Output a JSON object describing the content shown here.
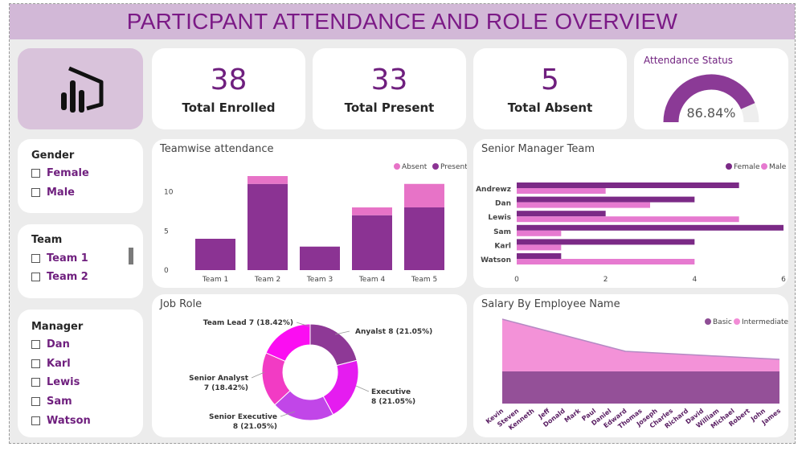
{
  "title": "PARTICPANT ATTENDANCE AND ROLE OVERVIEW",
  "logo": {
    "icon": "power-bi-logo-icon"
  },
  "kpis": [
    {
      "value": "38",
      "label": "Total Enrolled"
    },
    {
      "value": "33",
      "label": "Total Present"
    },
    {
      "value": "5",
      "label": "Total Absent"
    }
  ],
  "gauge": {
    "title": "Attendance Status",
    "value_label": "86.84%",
    "fraction": 0.8684,
    "fill_color": "#8b3a96",
    "track_color": "#eeeeee"
  },
  "slicers": {
    "gender": {
      "title": "Gender",
      "items": [
        "Female",
        "Male"
      ]
    },
    "team": {
      "title": "Team",
      "items": [
        "Team 1",
        "Team 2"
      ]
    },
    "manager": {
      "title": "Manager",
      "items": [
        "Dan",
        "Karl",
        "Lewis",
        "Sam",
        "Watson"
      ]
    }
  },
  "colors": {
    "present": "#8b3393",
    "absent": "#e773c7",
    "female": "#7b2a86",
    "male": "#e67ad0",
    "title": "#7b1a86"
  },
  "chart_data": [
    {
      "type": "bar",
      "title": "Teamwise attendance",
      "categories": [
        "Team 1",
        "Team 2",
        "Team 3",
        "Team 4",
        "Team 5"
      ],
      "series": [
        {
          "name": "Present",
          "values": [
            4,
            11,
            3,
            7,
            8
          ]
        },
        {
          "name": "Absent",
          "values": [
            0,
            1,
            0,
            1,
            3
          ]
        }
      ],
      "stacked": true,
      "legend": [
        "Absent",
        "Present"
      ],
      "yticks": [
        0,
        5,
        10
      ],
      "ylim": [
        0,
        12
      ]
    },
    {
      "type": "bar",
      "orientation": "horizontal",
      "title": "Senior Manager Team",
      "categories": [
        "Andrewz",
        "Dan",
        "Lewis",
        "Sam",
        "Karl",
        "Watson"
      ],
      "series": [
        {
          "name": "Female",
          "values": [
            5,
            4,
            2,
            6,
            4,
            1
          ]
        },
        {
          "name": "Male",
          "values": [
            2,
            3,
            5,
            1,
            1,
            4
          ]
        }
      ],
      "xticks": [
        0,
        2,
        4,
        6
      ],
      "xlim": [
        0,
        6
      ]
    },
    {
      "type": "pie",
      "donut": true,
      "title": "Job Role",
      "slices": [
        {
          "label": "Anyalst",
          "value": 8,
          "display": "Anyalst 8 (21.05%)",
          "color": "#8e3996"
        },
        {
          "label": "Executive",
          "value": 8,
          "display_lines": [
            "Executive",
            "8 (21.05%)"
          ],
          "color": "#e51cf0"
        },
        {
          "label": "Senior Executive",
          "value": 8,
          "display_lines": [
            "Senior Executive",
            "8 (21.05%)"
          ],
          "color": "#c146e8"
        },
        {
          "label": "Senior Analyst",
          "value": 7,
          "display_lines": [
            "Senior Analyst",
            "7 (18.42%)"
          ],
          "color": "#f23bc4"
        },
        {
          "label": "Team Lead",
          "value": 7,
          "display": "Team Lead 7 (18.42%)",
          "color": "#fb0df2"
        }
      ]
    },
    {
      "type": "area",
      "title": "Salary By Employee Name",
      "categories": [
        "Kevin",
        "Steven",
        "Kenneth",
        "Jeff",
        "Donald",
        "Mark",
        "Paul",
        "Daniel",
        "Edward",
        "Thomas",
        "Joseph",
        "Charles",
        "Richard",
        "David",
        "William",
        "Michael",
        "Robert",
        "John",
        "James"
      ],
      "series": [
        {
          "name": "Basic",
          "values": [
            40,
            40,
            40,
            40,
            40,
            40,
            40,
            40,
            40,
            40,
            40,
            40,
            40,
            40,
            40,
            40,
            40,
            40,
            40
          ]
        },
        {
          "name": "Intermediate",
          "values": [
            65,
            60,
            55,
            50,
            45,
            40,
            35,
            30,
            25,
            24,
            23,
            22,
            21,
            20,
            19,
            18,
            17,
            16,
            15
          ]
        }
      ],
      "legend": [
        "Basic",
        "Intermediate"
      ],
      "colors": [
        "#8e4d95",
        "#f28cd6"
      ]
    }
  ]
}
